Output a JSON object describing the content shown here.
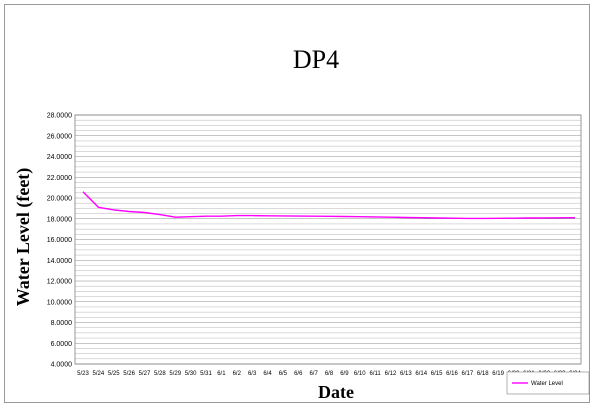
{
  "chart_data": {
    "type": "line",
    "title": "DP4",
    "xlabel": "Date",
    "ylabel": "Water Level (feet)",
    "ylim": [
      4,
      28
    ],
    "yticks": [
      "4.0000",
      "6.0000",
      "8.0000",
      "10.0000",
      "12.0000",
      "14.0000",
      "16.0000",
      "18.0000",
      "20.0000",
      "22.0000",
      "24.0000",
      "26.0000",
      "28.0000"
    ],
    "grid": true,
    "legend_position": "bottom-right",
    "categories": [
      "5/23",
      "5/24",
      "5/25",
      "5/26",
      "5/27",
      "5/28",
      "5/29",
      "5/30",
      "5/31",
      "6/1",
      "6/2",
      "6/3",
      "6/4",
      "6/5",
      "6/6",
      "6/7",
      "6/8",
      "6/9",
      "6/10",
      "6/11",
      "6/12",
      "6/13",
      "6/14",
      "6/15",
      "6/16",
      "6/17",
      "6/18",
      "6/19",
      "6/20",
      "6/21",
      "6/22",
      "6/23",
      "6/24"
    ],
    "series": [
      {
        "name": "Water Level",
        "color": "#ff00ff",
        "values": [
          20.6,
          19.1,
          18.85,
          18.7,
          18.6,
          18.4,
          18.15,
          18.2,
          18.25,
          18.25,
          18.3,
          18.3,
          18.28,
          18.27,
          18.26,
          18.25,
          18.24,
          18.22,
          18.2,
          18.18,
          18.15,
          18.12,
          18.1,
          18.07,
          18.05,
          18.03,
          18.03,
          18.04,
          18.05,
          18.07,
          18.08,
          18.09,
          18.1
        ]
      }
    ]
  }
}
